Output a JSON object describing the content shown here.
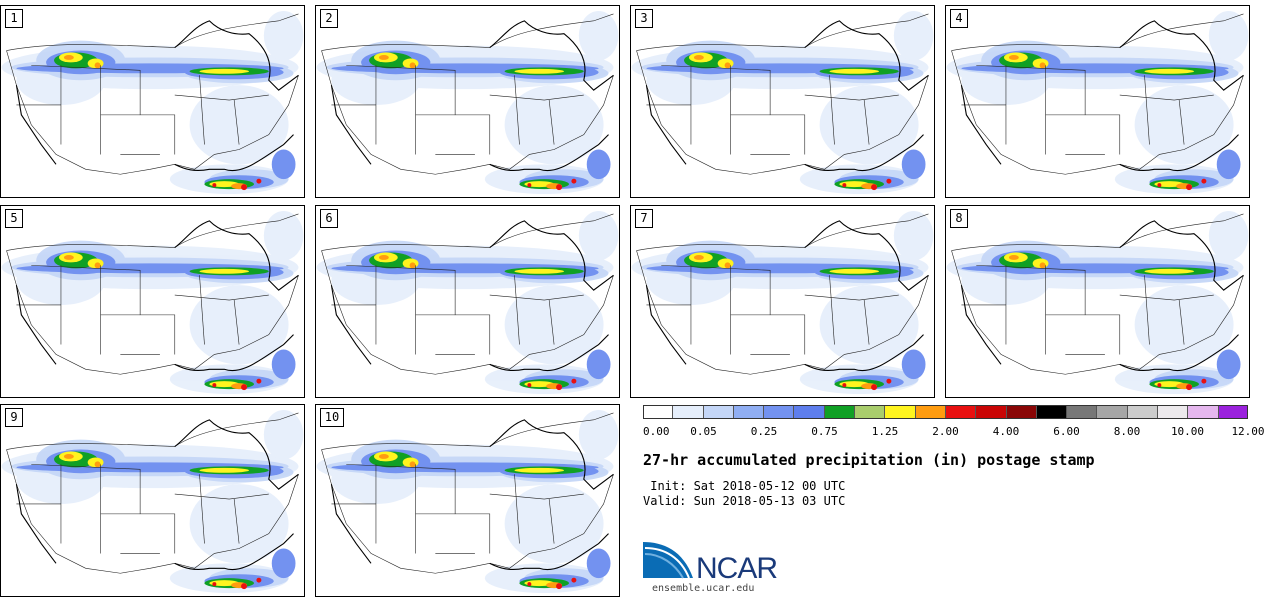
{
  "stamps": [
    {
      "label": "1"
    },
    {
      "label": "2"
    },
    {
      "label": "3"
    },
    {
      "label": "4"
    },
    {
      "label": "5"
    },
    {
      "label": "6"
    },
    {
      "label": "7"
    },
    {
      "label": "8"
    },
    {
      "label": "9"
    },
    {
      "label": "10"
    }
  ],
  "colorbar": {
    "colors": [
      "#ffffff",
      "#e5eefb",
      "#c4d6f7",
      "#90aef3",
      "#7392f0",
      "#5e7eed",
      "#10a025",
      "#a9cd6c",
      "#fff41f",
      "#ff9c10",
      "#e81010",
      "#c90505",
      "#8a0606",
      "#000000",
      "#777777",
      "#a6a6a6",
      "#cccccc",
      "#ece9ec",
      "#e5b7ee",
      "#9b22dd"
    ],
    "tick_labels": [
      "0.00",
      "0.05",
      "0.25",
      "0.75",
      "1.25",
      "2.00",
      "4.00",
      "6.00",
      "8.00",
      "10.00",
      "12.00"
    ]
  },
  "title": "27-hr accumulated precipitation (in) postage stamp",
  "init_text": " Init: Sat 2018-05-12 00 UTC",
  "valid_text": "Valid: Sun 2018-05-13 03 UTC",
  "logo": {
    "text": "NCAR",
    "url": "ensemble.ucar.edu"
  }
}
